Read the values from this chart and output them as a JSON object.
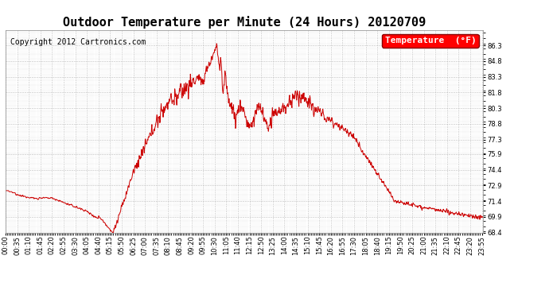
{
  "title": "Outdoor Temperature per Minute (24 Hours) 20120709",
  "copyright_text": "Copyright 2012 Cartronics.com",
  "legend_label": "Temperature  (°F)",
  "line_color": "#cc0000",
  "background_color": "#ffffff",
  "grid_color": "#b0b0b0",
  "ylim": [
    68.4,
    87.8
  ],
  "yticks": [
    68.4,
    69.9,
    71.4,
    72.9,
    74.4,
    75.9,
    77.3,
    78.8,
    80.3,
    81.8,
    83.3,
    84.8,
    86.3
  ],
  "title_fontsize": 11,
  "axis_fontsize": 6,
  "copyright_fontsize": 7,
  "legend_fontsize": 8
}
